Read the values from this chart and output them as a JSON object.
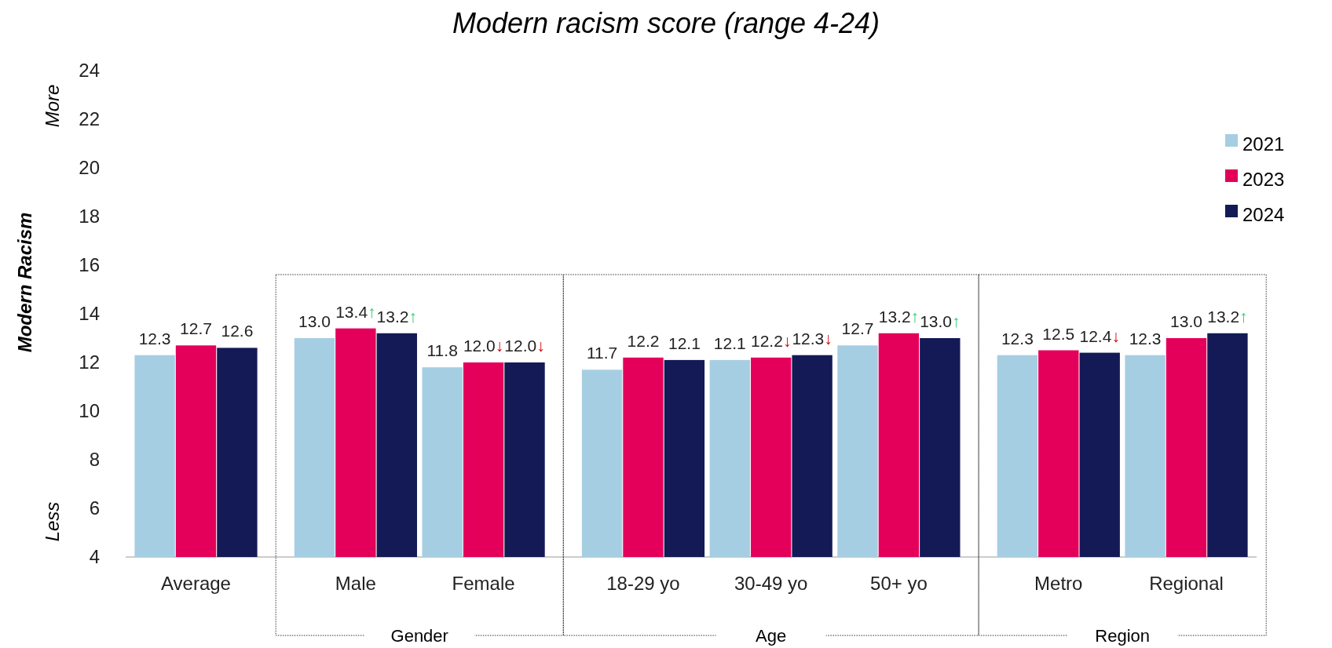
{
  "chart_data": {
    "type": "bar",
    "title": "Modern racism score (range 4-24)",
    "ylabel": "Modern Racism",
    "categories": [
      "Average",
      "Male",
      "Female",
      "18-29 yo",
      "30-49 yo",
      "50+ yo",
      "Metro",
      "Regional"
    ],
    "series": [
      {
        "name": "2021",
        "color": "#a6cee3",
        "values": [
          12.3,
          13.0,
          11.8,
          11.7,
          12.1,
          12.7,
          12.3,
          12.3
        ],
        "value_labels": [
          "12.3",
          "13.0",
          "11.8",
          "11.7",
          "12.1",
          "12.7",
          "12.3",
          "12.3"
        ]
      },
      {
        "name": "2023",
        "color": "#e4005a",
        "values": [
          12.7,
          13.4,
          12.0,
          12.2,
          12.2,
          13.2,
          12.5,
          13.0
        ],
        "value_labels": [
          "12.7",
          "13.4↑",
          "12.0↓",
          "12.2",
          "12.2↓",
          "13.2↑",
          "12.5",
          "13.0"
        ]
      },
      {
        "name": "2024",
        "color": "#131a55",
        "values": [
          12.6,
          13.2,
          12.0,
          12.1,
          12.3,
          13.0,
          12.4,
          13.2
        ],
        "value_labels": [
          "12.6",
          "13.2↑",
          "12.0↓",
          "12.1",
          "12.3↓",
          "13.0↑",
          "12.4↓",
          "13.2↑"
        ]
      }
    ],
    "ylim": [
      4,
      24
    ],
    "yticks": [
      4,
      6,
      8,
      10,
      12,
      14,
      16,
      18,
      20,
      22,
      24
    ],
    "grid": false,
    "legend": "top right",
    "annotations": [
      "More",
      "Less",
      "Gender",
      "Age",
      "Region"
    ]
  }
}
